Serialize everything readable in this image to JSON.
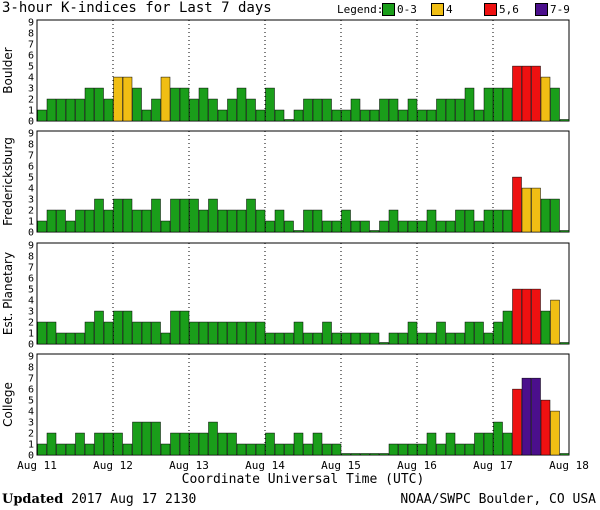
{
  "header": {
    "title": "3-hour K-indices for Last 7 days",
    "legend_title": "Legend:",
    "legend": [
      {
        "label": "0-3",
        "color": "#1a9e1a"
      },
      {
        "label": "4",
        "color": "#f0be14"
      },
      {
        "label": "5,6",
        "color": "#ee1111"
      },
      {
        "label": "7-9",
        "color": "#4b0f8c"
      }
    ]
  },
  "chart_data": {
    "type": "bar",
    "xlabel": "Coordinate Universal Time (UTC)",
    "x_ticks": [
      "Aug 11",
      "Aug 12",
      "Aug 13",
      "Aug 14",
      "Aug 15",
      "Aug 16",
      "Aug 17",
      "Aug 18"
    ],
    "ylim": [
      0,
      9
    ],
    "y_ticks": [
      0,
      1,
      2,
      3,
      4,
      5,
      6,
      7,
      8,
      9
    ],
    "panels": [
      {
        "name": "Boulder",
        "values": [
          1,
          2,
          2,
          2,
          2,
          3,
          3,
          2,
          4,
          4,
          3,
          1,
          2,
          4,
          3,
          3,
          2,
          3,
          2,
          1,
          2,
          3,
          2,
          1,
          3,
          1,
          0,
          1,
          2,
          2,
          2,
          1,
          1,
          2,
          1,
          1,
          2,
          2,
          1,
          2,
          1,
          1,
          2,
          2,
          2,
          3,
          1,
          3,
          3,
          3,
          5,
          5,
          5,
          4,
          3,
          0
        ]
      },
      {
        "name": "Fredericksburg",
        "values": [
          1,
          2,
          2,
          1,
          2,
          2,
          3,
          2,
          3,
          3,
          2,
          2,
          3,
          1,
          3,
          3,
          3,
          2,
          3,
          2,
          2,
          2,
          3,
          2,
          1,
          2,
          1,
          0,
          2,
          2,
          1,
          1,
          2,
          1,
          1,
          0,
          1,
          2,
          1,
          1,
          1,
          2,
          1,
          1,
          2,
          2,
          1,
          2,
          2,
          2,
          5,
          4,
          4,
          3,
          3,
          0
        ]
      },
      {
        "name": "Est. Planetary",
        "values": [
          2,
          2,
          1,
          1,
          1,
          2,
          3,
          2,
          3,
          3,
          2,
          2,
          2,
          1,
          3,
          3,
          2,
          2,
          2,
          2,
          2,
          2,
          2,
          2,
          1,
          1,
          1,
          2,
          1,
          1,
          2,
          1,
          1,
          1,
          1,
          1,
          0,
          1,
          1,
          2,
          1,
          1,
          2,
          1,
          1,
          2,
          2,
          1,
          2,
          3,
          5,
          5,
          5,
          3,
          4,
          0
        ]
      },
      {
        "name": "College",
        "values": [
          1,
          2,
          1,
          1,
          2,
          1,
          2,
          2,
          2,
          1,
          3,
          3,
          3,
          1,
          2,
          2,
          2,
          2,
          3,
          2,
          2,
          1,
          1,
          1,
          2,
          1,
          1,
          2,
          1,
          2,
          1,
          1,
          0,
          0,
          0,
          0,
          0,
          1,
          1,
          1,
          1,
          2,
          1,
          2,
          1,
          1,
          2,
          2,
          3,
          2,
          6,
          7,
          7,
          5,
          4,
          0
        ]
      }
    ]
  },
  "footer": {
    "updated_label": "Updated",
    "updated_time": "2017 Aug 17 2130",
    "source": "NOAA/SWPC Boulder, CO USA"
  }
}
